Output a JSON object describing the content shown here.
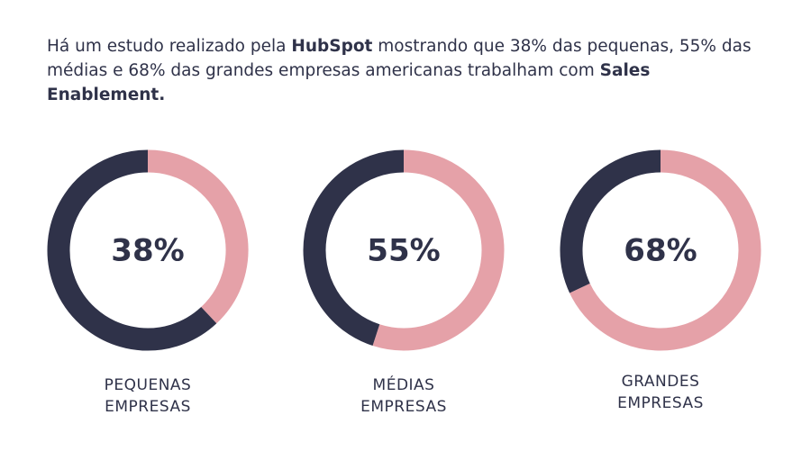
{
  "intro": [
    "Há um estudo realizado pela ",
    "HubSpot",
    " mostrando que 38% das pequenas, 55% das médias e 68% das grandes empresas americanas trabalham com ",
    "Sales Enablement."
  ],
  "chart_data": [
    {
      "type": "donut",
      "title": "PEQUENAS EMPRESAS",
      "values": [
        38,
        62
      ],
      "value_labels": [
        "38%",
        null
      ],
      "colors": [
        "#e5a1a8",
        "#2f3249"
      ]
    },
    {
      "type": "donut",
      "title": "MÉDIAS EMPRESAS",
      "values": [
        55,
        45
      ],
      "value_labels": [
        "55%",
        null
      ],
      "colors": [
        "#e5a1a8",
        "#2f3249"
      ]
    },
    {
      "type": "donut",
      "title": "GRANDES EMPRESAS",
      "values": [
        68,
        32
      ],
      "value_labels": [
        "68%",
        null
      ],
      "colors": [
        "#e5a1a8",
        "#2f3249"
      ]
    }
  ]
}
